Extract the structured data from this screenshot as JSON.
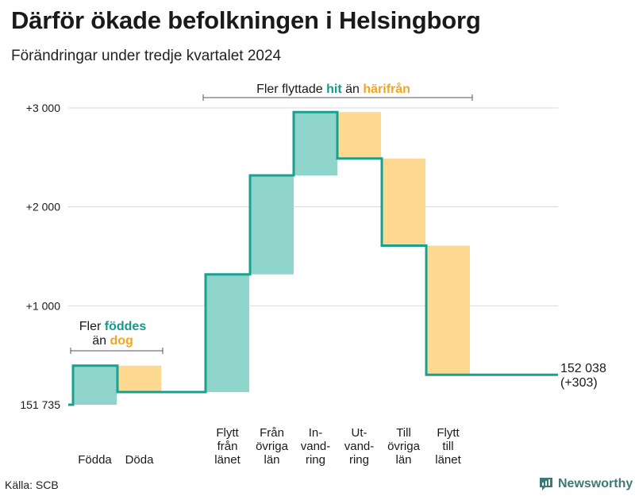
{
  "header": {
    "title": "Därför ökade befolkningen i Helsingborg",
    "subtitle": "Förändringar under tredje kvartalet 2024"
  },
  "footer": {
    "source": "Källa: SCB",
    "brand": "Newsworthy"
  },
  "colors": {
    "inflow": "#8fd5cc",
    "outflow": "#fcd891",
    "line": "#19a091",
    "accent_in": "#16998a",
    "accent_out": "#f4a523",
    "grid": "#d9d9d9",
    "text": "#1a1a1a"
  },
  "chart_data": {
    "type": "waterfall",
    "title": "Därför ökade befolkningen i Helsingborg",
    "subtitle": "Förändringar under tredje kvartalet 2024",
    "baseline_label": "151 735",
    "end_label": "152 038",
    "end_change_label": "(+303)",
    "y_relative_range": [
      0,
      3000
    ],
    "y_ticks": [
      {
        "value": 0,
        "label": "151 735"
      },
      {
        "value": 1000,
        "label": "+1 000"
      },
      {
        "value": 2000,
        "label": "+2 000"
      },
      {
        "value": 3000,
        "label": "+3 000"
      }
    ],
    "steps": [
      {
        "label": "Födda",
        "kind": "in",
        "value": 395
      },
      {
        "label": "Döda",
        "kind": "out",
        "value": -267
      },
      {
        "label": "Flytt från länet",
        "kind": "in",
        "value": 1190
      },
      {
        "label": "Från övriga län",
        "kind": "in",
        "value": 1000
      },
      {
        "label": "In-vand-ring",
        "kind": "in",
        "value": 640
      },
      {
        "label": "Ut-vand-ring",
        "kind": "out",
        "value": -470
      },
      {
        "label": "Till övriga län",
        "kind": "out",
        "value": -880
      },
      {
        "label": "Flytt till länet",
        "kind": "out",
        "value": -1305
      }
    ],
    "category_labels": [
      [
        "Födda"
      ],
      [
        "Döda"
      ],
      [
        "Flytt",
        "från",
        "länet"
      ],
      [
        "Från",
        "övriga",
        "län"
      ],
      [
        "In-",
        "vand-",
        "ring"
      ],
      [
        "Ut-",
        "vand-",
        "ring"
      ],
      [
        "Till",
        "övriga",
        "län"
      ],
      [
        "Flytt",
        "till",
        "länet"
      ]
    ],
    "annotations": {
      "births": {
        "line1": "Fler",
        "word1": "föddes",
        "line2": "än",
        "word2": "dog"
      },
      "moves": {
        "pre": "Fler flyttade",
        "word1": "hit",
        "mid": "än",
        "word2": "härifrån"
      }
    },
    "grid": true
  }
}
